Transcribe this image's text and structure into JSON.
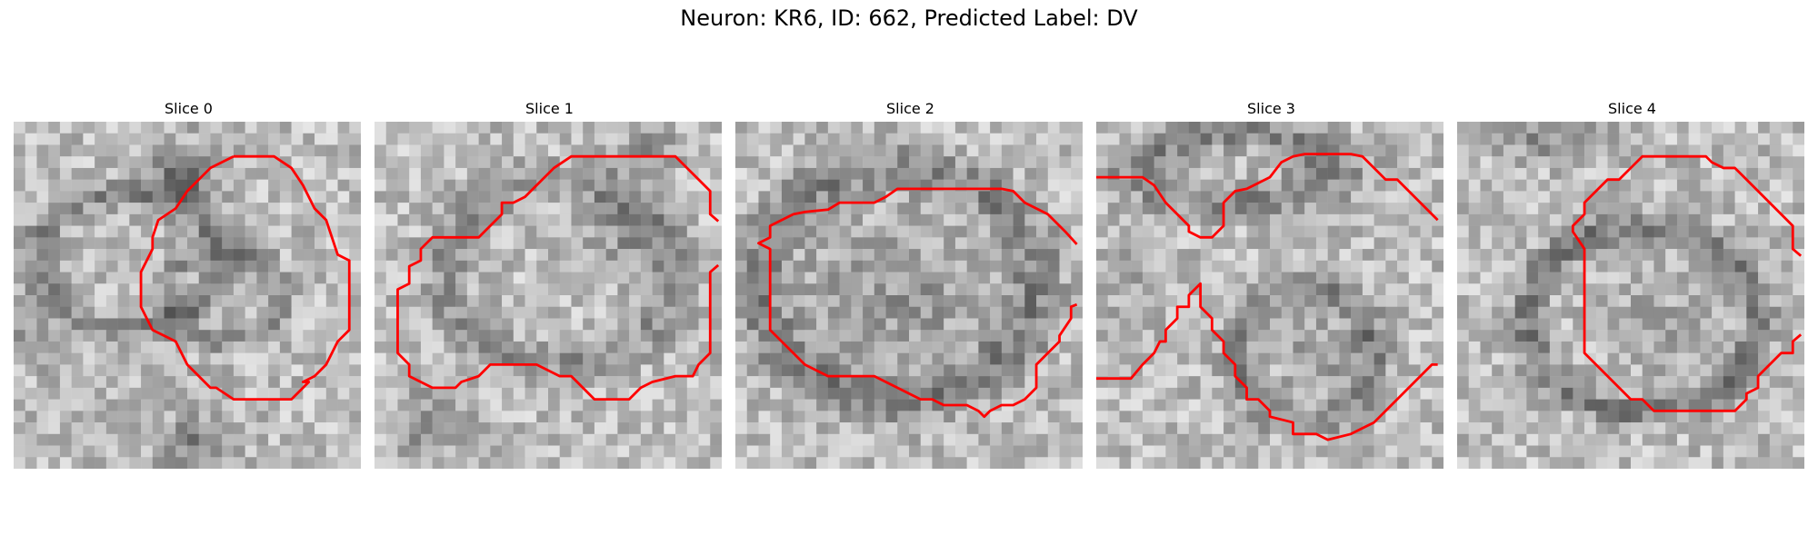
{
  "figure": {
    "title": "Neuron: KR6, ID: 662, Predicted Label: DV"
  },
  "panels": [
    {
      "title": "Slice 0",
      "contour_color": "#ff0000"
    },
    {
      "title": "Slice 1",
      "contour_color": "#ff0000"
    },
    {
      "title": "Slice 2",
      "contour_color": "#ff0000"
    },
    {
      "title": "Slice 3",
      "contour_color": "#ff0000"
    },
    {
      "title": "Slice 4",
      "contour_color": "#ff0000"
    }
  ],
  "colormap": "gray"
}
